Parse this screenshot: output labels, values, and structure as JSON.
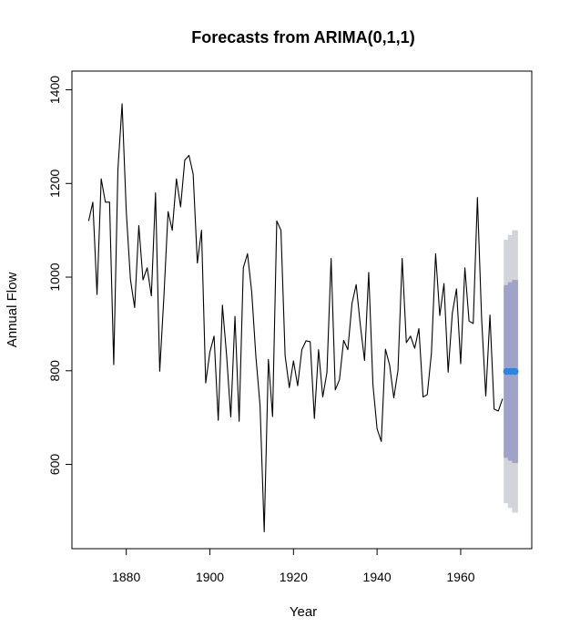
{
  "chart_data": {
    "type": "line",
    "title": "Forecasts from ARIMA(0,1,1)",
    "xlabel": "Year",
    "ylabel": "Annual Flow",
    "xlim": [
      1867,
      1977
    ],
    "ylim": [
      420,
      1440
    ],
    "x_ticks": [
      1880,
      1900,
      1920,
      1940,
      1960
    ],
    "y_ticks": [
      600,
      800,
      1000,
      1200,
      1400
    ],
    "grid": false,
    "colors": {
      "series": "#000000",
      "ci80": "#9fa3c7",
      "ci95": "#d3d3db",
      "point_forecast": "#2f84e0"
    },
    "series": [
      {
        "x": [
          1871,
          1872,
          1873,
          1874,
          1875,
          1876,
          1877,
          1878,
          1879,
          1880,
          1881,
          1882,
          1883,
          1884,
          1885,
          1886,
          1887,
          1888,
          1889,
          1890,
          1891,
          1892,
          1893,
          1894,
          1895,
          1896,
          1897,
          1898,
          1899,
          1900,
          1901,
          1902,
          1903,
          1904,
          1905,
          1906,
          1907,
          1908,
          1909,
          1910,
          1911,
          1912,
          1913,
          1914,
          1915,
          1916,
          1917,
          1918,
          1919,
          1920,
          1921,
          1922,
          1923,
          1924,
          1925,
          1926,
          1927,
          1928,
          1929,
          1930,
          1931,
          1932,
          1933,
          1934,
          1935,
          1936,
          1937,
          1938,
          1939,
          1940,
          1941,
          1942,
          1943,
          1944,
          1945,
          1946,
          1947,
          1948,
          1949,
          1950,
          1951,
          1952,
          1953,
          1954,
          1955,
          1956,
          1957,
          1958,
          1959,
          1960,
          1961,
          1962,
          1963,
          1964,
          1965,
          1966,
          1967,
          1968,
          1969,
          1970
        ],
        "values": [
          1120,
          1160,
          963,
          1210,
          1160,
          1160,
          813,
          1230,
          1370,
          1140,
          995,
          935,
          1110,
          994,
          1020,
          960,
          1180,
          799,
          958,
          1140,
          1100,
          1210,
          1150,
          1250,
          1260,
          1220,
          1030,
          1100,
          774,
          840,
          874,
          694,
          940,
          833,
          701,
          916,
          692,
          1020,
          1050,
          969,
          831,
          726,
          456,
          824,
          702,
          1120,
          1100,
          832,
          764,
          821,
          768,
          845,
          864,
          862,
          698,
          845,
          744,
          796,
          1040,
          759,
          781,
          865,
          845,
          944,
          984,
          897,
          822,
          1010,
          771,
          676,
          649,
          846,
          812,
          742,
          801,
          1040,
          860,
          874,
          848,
          890,
          744,
          749,
          838,
          1050,
          918,
          986,
          797,
          923,
          975,
          815,
          1020,
          906,
          901,
          1170,
          912,
          746,
          919,
          718,
          714,
          740
        ]
      }
    ],
    "forecast": {
      "years": [
        1971,
        1972,
        1973
      ],
      "point": [
        798.5,
        798.5,
        798.5
      ],
      "lo80": [
        614,
        608,
        603
      ],
      "hi80": [
        983,
        989,
        994
      ],
      "lo95": [
        517,
        507,
        497
      ],
      "hi95": [
        1080,
        1090,
        1100
      ]
    }
  }
}
